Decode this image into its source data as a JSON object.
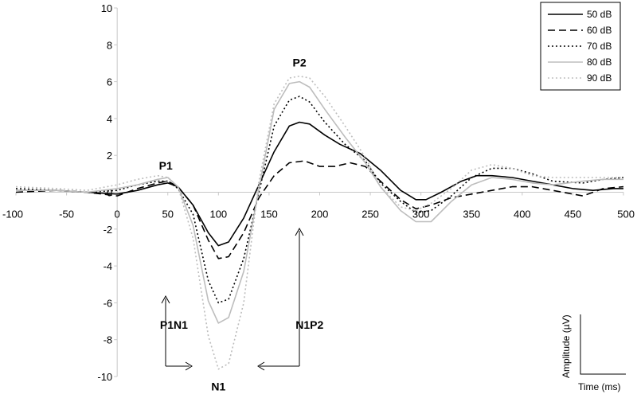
{
  "chart_data": {
    "type": "line",
    "xlim": [
      -100,
      500
    ],
    "ylim": [
      -10,
      10
    ],
    "x_ticks": [
      -100,
      -50,
      0,
      50,
      100,
      150,
      200,
      250,
      300,
      350,
      400,
      450,
      500
    ],
    "y_ticks": [
      10,
      8,
      6,
      4,
      2,
      0,
      -2,
      -4,
      -6,
      -8,
      -10
    ],
    "grid": false,
    "legend_position": "top-right",
    "series": [
      {
        "name": "50 dB",
        "color": "#000000",
        "dash": "solid",
        "points": [
          [
            -100,
            0.1
          ],
          [
            -60,
            0.1
          ],
          [
            -30,
            0.0
          ],
          [
            0,
            -0.1
          ],
          [
            20,
            0.1
          ],
          [
            40,
            0.4
          ],
          [
            50,
            0.5
          ],
          [
            60,
            0.3
          ],
          [
            75,
            -0.7
          ],
          [
            90,
            -2.2
          ],
          [
            100,
            -2.9
          ],
          [
            110,
            -2.7
          ],
          [
            125,
            -1.4
          ],
          [
            140,
            0.4
          ],
          [
            155,
            2.2
          ],
          [
            170,
            3.6
          ],
          [
            180,
            3.8
          ],
          [
            190,
            3.7
          ],
          [
            205,
            3.1
          ],
          [
            220,
            2.6
          ],
          [
            240,
            2.1
          ],
          [
            260,
            1.2
          ],
          [
            280,
            0.1
          ],
          [
            295,
            -0.4
          ],
          [
            305,
            -0.4
          ],
          [
            320,
            0.0
          ],
          [
            340,
            0.6
          ],
          [
            355,
            0.9
          ],
          [
            370,
            0.9
          ],
          [
            390,
            0.8
          ],
          [
            410,
            0.6
          ],
          [
            430,
            0.4
          ],
          [
            450,
            0.2
          ],
          [
            470,
            0.1
          ],
          [
            490,
            0.2
          ],
          [
            500,
            0.2
          ]
        ]
      },
      {
        "name": "60 dB",
        "color": "#000000",
        "dash": "dashed",
        "points": [
          [
            -100,
            0.0
          ],
          [
            -60,
            0.1
          ],
          [
            -30,
            0.0
          ],
          [
            0,
            -0.2
          ],
          [
            20,
            0.2
          ],
          [
            40,
            0.5
          ],
          [
            50,
            0.6
          ],
          [
            60,
            0.3
          ],
          [
            75,
            -0.7
          ],
          [
            90,
            -2.6
          ],
          [
            100,
            -3.6
          ],
          [
            110,
            -3.5
          ],
          [
            125,
            -2.2
          ],
          [
            140,
            -0.3
          ],
          [
            155,
            0.9
          ],
          [
            170,
            1.6
          ],
          [
            185,
            1.7
          ],
          [
            200,
            1.4
          ],
          [
            215,
            1.4
          ],
          [
            230,
            1.6
          ],
          [
            245,
            1.4
          ],
          [
            260,
            0.6
          ],
          [
            280,
            -0.4
          ],
          [
            295,
            -0.9
          ],
          [
            310,
            -0.7
          ],
          [
            330,
            -0.3
          ],
          [
            350,
            -0.1
          ],
          [
            370,
            0.1
          ],
          [
            390,
            0.3
          ],
          [
            410,
            0.3
          ],
          [
            430,
            0.1
          ],
          [
            460,
            -0.2
          ],
          [
            480,
            0.2
          ],
          [
            500,
            0.3
          ]
        ]
      },
      {
        "name": "70 dB",
        "color": "#000000",
        "dash": "dotted",
        "points": [
          [
            -100,
            0.2
          ],
          [
            -60,
            0.1
          ],
          [
            -30,
            0.0
          ],
          [
            0,
            0.1
          ],
          [
            20,
            0.4
          ],
          [
            40,
            0.6
          ],
          [
            50,
            0.6
          ],
          [
            60,
            0.2
          ],
          [
            75,
            -1.2
          ],
          [
            90,
            -4.8
          ],
          [
            100,
            -6.0
          ],
          [
            110,
            -5.8
          ],
          [
            125,
            -3.6
          ],
          [
            140,
            0.0
          ],
          [
            155,
            3.6
          ],
          [
            170,
            5.0
          ],
          [
            180,
            5.2
          ],
          [
            190,
            4.9
          ],
          [
            205,
            3.8
          ],
          [
            225,
            2.6
          ],
          [
            245,
            1.7
          ],
          [
            260,
            0.5
          ],
          [
            280,
            -0.5
          ],
          [
            295,
            -1.1
          ],
          [
            310,
            -1.0
          ],
          [
            330,
            -0.2
          ],
          [
            350,
            0.8
          ],
          [
            370,
            1.3
          ],
          [
            390,
            1.3
          ],
          [
            410,
            1.0
          ],
          [
            430,
            0.6
          ],
          [
            460,
            0.5
          ],
          [
            480,
            0.7
          ],
          [
            500,
            0.8
          ]
        ]
      },
      {
        "name": "80 dB",
        "color": "#bdbdbd",
        "dash": "solid",
        "points": [
          [
            -100,
            0.1
          ],
          [
            -60,
            0.1
          ],
          [
            -30,
            0.0
          ],
          [
            0,
            0.2
          ],
          [
            20,
            0.4
          ],
          [
            40,
            0.7
          ],
          [
            50,
            0.8
          ],
          [
            60,
            0.3
          ],
          [
            75,
            -1.8
          ],
          [
            90,
            -5.9
          ],
          [
            100,
            -7.1
          ],
          [
            110,
            -6.8
          ],
          [
            125,
            -4.3
          ],
          [
            140,
            0.2
          ],
          [
            155,
            4.5
          ],
          [
            170,
            5.9
          ],
          [
            180,
            6.0
          ],
          [
            190,
            5.7
          ],
          [
            205,
            4.5
          ],
          [
            225,
            3.0
          ],
          [
            245,
            1.6
          ],
          [
            260,
            0.3
          ],
          [
            280,
            -1.0
          ],
          [
            295,
            -1.6
          ],
          [
            310,
            -1.6
          ],
          [
            330,
            -0.5
          ],
          [
            350,
            0.4
          ],
          [
            370,
            0.8
          ],
          [
            390,
            0.7
          ],
          [
            410,
            0.5
          ],
          [
            430,
            0.4
          ],
          [
            460,
            0.6
          ],
          [
            480,
            0.7
          ],
          [
            500,
            0.7
          ]
        ]
      },
      {
        "name": "90 dB",
        "color": "#bdbdbd",
        "dash": "dotted",
        "points": [
          [
            -100,
            0.3
          ],
          [
            -60,
            0.2
          ],
          [
            -30,
            0.1
          ],
          [
            0,
            0.4
          ],
          [
            20,
            0.7
          ],
          [
            40,
            0.9
          ],
          [
            50,
            0.8
          ],
          [
            60,
            0.3
          ],
          [
            75,
            -2.5
          ],
          [
            90,
            -7.8
          ],
          [
            100,
            -9.6
          ],
          [
            110,
            -9.3
          ],
          [
            125,
            -6.0
          ],
          [
            140,
            0.6
          ],
          [
            155,
            4.8
          ],
          [
            170,
            6.2
          ],
          [
            180,
            6.3
          ],
          [
            190,
            6.2
          ],
          [
            205,
            5.2
          ],
          [
            225,
            3.6
          ],
          [
            245,
            1.9
          ],
          [
            260,
            0.3
          ],
          [
            280,
            -0.8
          ],
          [
            295,
            -1.0
          ],
          [
            310,
            -0.6
          ],
          [
            330,
            0.2
          ],
          [
            350,
            1.2
          ],
          [
            370,
            1.5
          ],
          [
            390,
            1.3
          ],
          [
            410,
            0.9
          ],
          [
            430,
            0.8
          ],
          [
            460,
            0.8
          ],
          [
            480,
            0.8
          ],
          [
            500,
            0.8
          ]
        ]
      }
    ],
    "annotations": [
      {
        "text": "P1",
        "x": 48,
        "y": 1.45
      },
      {
        "text": "P2",
        "x": 180,
        "y": 7.05
      },
      {
        "text": "N1",
        "x": 100,
        "y": -10.55
      },
      {
        "text": "P1N1",
        "x": 56,
        "y": -7.2
      },
      {
        "text": "N1P2",
        "x": 190,
        "y": -7.2
      }
    ],
    "scale_bar": {
      "ylabel": "Amplitude (µV)",
      "xlabel": "Time (ms)"
    }
  }
}
